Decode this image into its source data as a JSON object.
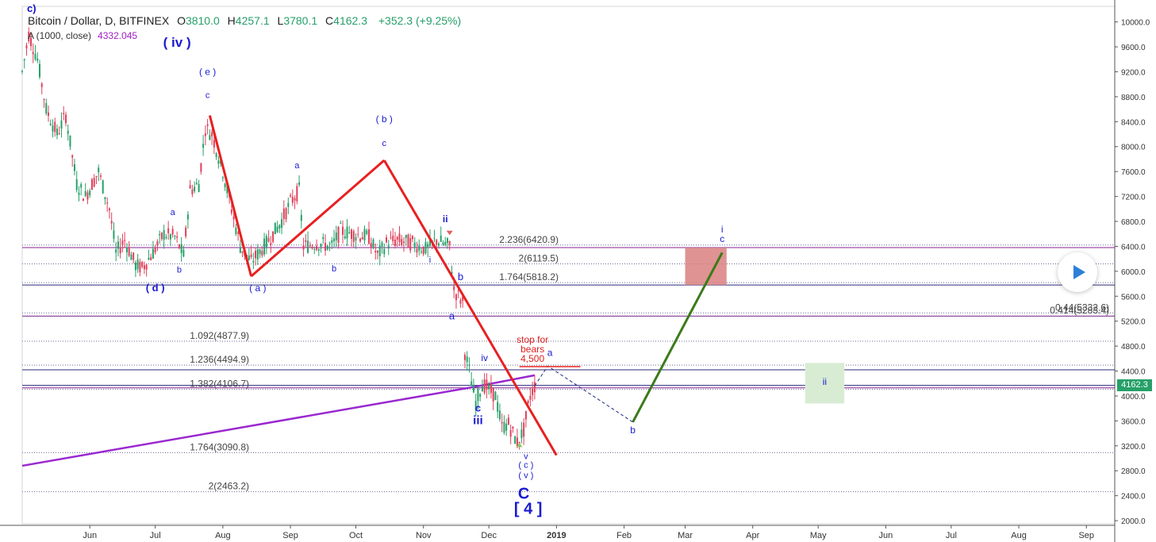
{
  "header": {
    "symbol": "Bitcoin / Dollar, D, BITFINEX",
    "open_label": "O",
    "open": "3810.0",
    "high_label": "H",
    "high": "4257.1",
    "low_label": "L",
    "low": "3780.1",
    "close_label": "C",
    "close": "4162.3",
    "change": "+352.3 (+9.25%)",
    "indicator": "A (1000, close)",
    "indicator_value": "4332.045",
    "corner_label": "c)"
  },
  "price_tag": "4162.3",
  "chart_data": {
    "type": "candlestick",
    "title": "Bitcoin / Dollar, D, BITFINEX",
    "x_axis_labels": [
      "Jun",
      "Jul",
      "Aug",
      "Sep",
      "Oct",
      "Nov",
      "Dec",
      "2019",
      "Feb",
      "Mar",
      "Apr",
      "May",
      "Jun",
      "Jul",
      "Aug",
      "Sep"
    ],
    "y_axis_labels": [
      "10000.0",
      "9600.0",
      "9200.0",
      "8800.0",
      "8400.0",
      "8000.0",
      "7600.0",
      "7200.0",
      "6800.0",
      "6400.0",
      "6000.0",
      "5600.0",
      "5200.0",
      "4800.0",
      "4400.0",
      "4000.0",
      "3600.0",
      "3200.0",
      "2800.0",
      "2400.0",
      "2000.0"
    ],
    "ylim": [
      1950,
      10250
    ],
    "price_path": [
      [
        "2018-05-01",
        9200
      ],
      [
        "2018-05-04",
        9800
      ],
      [
        "2018-05-08",
        9400
      ],
      [
        "2018-05-12",
        8600
      ],
      [
        "2018-05-17",
        8200
      ],
      [
        "2018-05-21",
        8500
      ],
      [
        "2018-05-26",
        7400
      ],
      [
        "2018-05-30",
        7200
      ],
      [
        "2018-06-05",
        7600
      ],
      [
        "2018-06-10",
        7000
      ],
      [
        "2018-06-13",
        6300
      ],
      [
        "2018-06-17",
        6500
      ],
      [
        "2018-06-22",
        6100
      ],
      [
        "2018-06-25",
        6050
      ],
      [
        "2018-06-30",
        6300
      ],
      [
        "2018-07-05",
        6600
      ],
      [
        "2018-07-10",
        6550
      ],
      [
        "2018-07-14",
        6250
      ],
      [
        "2018-07-17",
        7300
      ],
      [
        "2018-07-21",
        7400
      ],
      [
        "2018-07-24",
        8300
      ],
      [
        "2018-07-27",
        8200
      ],
      [
        "2018-08-01",
        7600
      ],
      [
        "2018-08-05",
        7000
      ],
      [
        "2018-08-09",
        6400
      ],
      [
        "2018-08-14",
        6150
      ],
      [
        "2018-08-20",
        6400
      ],
      [
        "2018-08-27",
        6750
      ],
      [
        "2018-09-01",
        7100
      ],
      [
        "2018-09-05",
        7300
      ],
      [
        "2018-09-07",
        6400
      ],
      [
        "2018-09-13",
        6450
      ],
      [
        "2018-09-20",
        6400
      ],
      [
        "2018-09-24",
        6650
      ],
      [
        "2018-09-30",
        6600
      ],
      [
        "2018-10-07",
        6550
      ],
      [
        "2018-10-11",
        6250
      ],
      [
        "2018-10-15",
        6450
      ],
      [
        "2018-10-20",
        6500
      ],
      [
        "2018-10-27",
        6450
      ],
      [
        "2018-11-02",
        6350
      ],
      [
        "2018-11-07",
        6500
      ],
      [
        "2018-11-13",
        6400
      ],
      [
        "2018-11-15",
        5700
      ],
      [
        "2018-11-19",
        5500
      ],
      [
        "2018-11-20",
        4700
      ],
      [
        "2018-11-22",
        4400
      ],
      [
        "2018-11-25",
        3900
      ],
      [
        "2018-11-28",
        4200
      ],
      [
        "2018-12-01",
        4100
      ],
      [
        "2018-12-04",
        4000
      ],
      [
        "2018-12-07",
        3500
      ],
      [
        "2018-12-10",
        3550
      ],
      [
        "2018-12-14",
        3250
      ],
      [
        "2018-12-17",
        3450
      ],
      [
        "2018-12-20",
        4000
      ],
      [
        "2018-12-22",
        4162
      ]
    ],
    "fib_levels": [
      {
        "label": "2.236(6420.9)",
        "value": 6420.9
      },
      {
        "label": "2(6119.5)",
        "value": 6119.5
      },
      {
        "label": "1.764(5818.2)",
        "value": 5818.2
      },
      {
        "label": "0.44(5332.6)",
        "value": 5332.6
      },
      {
        "label": "0.414(5283.4)",
        "value": 5283.4
      },
      {
        "label": "1.092(4877.9)",
        "value": 4877.9
      },
      {
        "label": "1.236(4494.9)",
        "value": 4494.9
      },
      {
        "label": "1.382(4106.7)",
        "value": 4106.7
      },
      {
        "label": "1.764(3090.8)",
        "value": 3090.8
      },
      {
        "label": "2(2463.2)",
        "value": 2463.2
      }
    ],
    "horizontal_lines": [
      6380,
      5780,
      5280,
      4420,
      4170,
      4130
    ],
    "sma_1000": {
      "name": "A (1000, close)",
      "points": [
        [
          "2018-05-01",
          2880
        ],
        [
          "2018-11-25",
          4150
        ],
        [
          "2018-12-22",
          4332
        ]
      ]
    },
    "trendlines": [
      {
        "color": "#e82020",
        "points": [
          [
            "2018-07-26",
            8500
          ],
          [
            "2018-08-14",
            5920
          ]
        ]
      },
      {
        "color": "#e82020",
        "points": [
          [
            "2018-08-14",
            5920
          ],
          [
            "2018-10-14",
            7780
          ]
        ]
      },
      {
        "color": "#e82020",
        "points": [
          [
            "2018-10-14",
            7780
          ],
          [
            "2019-01-01",
            3050
          ]
        ]
      },
      {
        "color": "#3b7a1a",
        "points": [
          [
            "2019-02-05",
            3580
          ],
          [
            "2019-03-18",
            6300
          ]
        ]
      }
    ],
    "projection": {
      "points": [
        [
          "2018-12-22",
          4162
        ],
        [
          "2018-12-28",
          4480
        ],
        [
          "2019-02-05",
          3580
        ]
      ]
    },
    "stop_line": {
      "value": 4470,
      "from": "2018-12-15",
      "to": "2019-01-12",
      "label": [
        "stop for",
        "bears",
        "4,500"
      ]
    },
    "boxes": [
      {
        "from": "2019-03-01",
        "to": "2019-03-20",
        "top": 6380,
        "bottom": 5780,
        "color": "#d98080"
      },
      {
        "from": "2019-04-25",
        "to": "2019-05-13",
        "top": 4530,
        "bottom": 3880,
        "color": "#d8ecd3"
      }
    ],
    "wave_labels": [
      {
        "text": "( iv )",
        "x": "2018-07-11",
        "y": 9600,
        "size": 17,
        "bold": true
      },
      {
        "text": "( e )",
        "x": "2018-07-25",
        "y": 9150,
        "size": 12
      },
      {
        "text": "c",
        "x": "2018-07-25",
        "y": 8780,
        "size": 11
      },
      {
        "text": "a",
        "x": "2018-07-09",
        "y": 6900,
        "size": 11
      },
      {
        "text": "b",
        "x": "2018-07-12",
        "y": 5980,
        "size": 11
      },
      {
        "text": "( d )",
        "x": "2018-07-01",
        "y": 5680,
        "size": 13,
        "bold": true
      },
      {
        "text": "( a )",
        "x": "2018-08-17",
        "y": 5680,
        "size": 12
      },
      {
        "text": "a",
        "x": "2018-09-04",
        "y": 7650,
        "size": 11
      },
      {
        "text": "b",
        "x": "2018-09-21",
        "y": 6000,
        "size": 11
      },
      {
        "text": "( b )",
        "x": "2018-10-14",
        "y": 8390,
        "size": 12
      },
      {
        "text": "c",
        "x": "2018-10-14",
        "y": 8010,
        "size": 11
      },
      {
        "text": "i",
        "x": "2018-11-04",
        "y": 6140,
        "size": 11
      },
      {
        "text": "ii",
        "x": "2018-11-11",
        "y": 6790,
        "size": 12,
        "bold": true
      },
      {
        "text": "b",
        "x": "2018-11-18",
        "y": 5860,
        "size": 13
      },
      {
        "text": "a",
        "x": "2018-11-14",
        "y": 5230,
        "size": 13
      },
      {
        "text": "iv",
        "x": "2018-11-29",
        "y": 4560,
        "size": 12
      },
      {
        "text": "c",
        "x": "2018-11-26",
        "y": 3750,
        "size": 13,
        "bold": true
      },
      {
        "text": "iii",
        "x": "2018-11-26",
        "y": 3550,
        "size": 15,
        "bold": true
      },
      {
        "text": "v",
        "x": "2018-12-18",
        "y": 2990,
        "size": 11
      },
      {
        "text": "( c )",
        "x": "2018-12-18",
        "y": 2850,
        "size": 11
      },
      {
        "text": "( v )",
        "x": "2018-12-18",
        "y": 2680,
        "size": 11
      },
      {
        "text": "C",
        "x": "2018-12-17",
        "y": 2350,
        "size": 20,
        "bold": true
      },
      {
        "text": "[ 4 ]",
        "x": "2018-12-19",
        "y": 2110,
        "size": 20,
        "bold": true
      },
      {
        "text": "a",
        "x": "2018-12-29",
        "y": 4640,
        "size": 12
      },
      {
        "text": "b",
        "x": "2019-02-05",
        "y": 3400,
        "size": 12
      },
      {
        "text": "i",
        "x": "2019-03-18",
        "y": 6620,
        "size": 12
      },
      {
        "text": "c",
        "x": "2019-03-18",
        "y": 6470,
        "size": 12
      },
      {
        "text": "ii",
        "x": "2019-05-04",
        "y": 4180,
        "size": 12
      }
    ]
  }
}
